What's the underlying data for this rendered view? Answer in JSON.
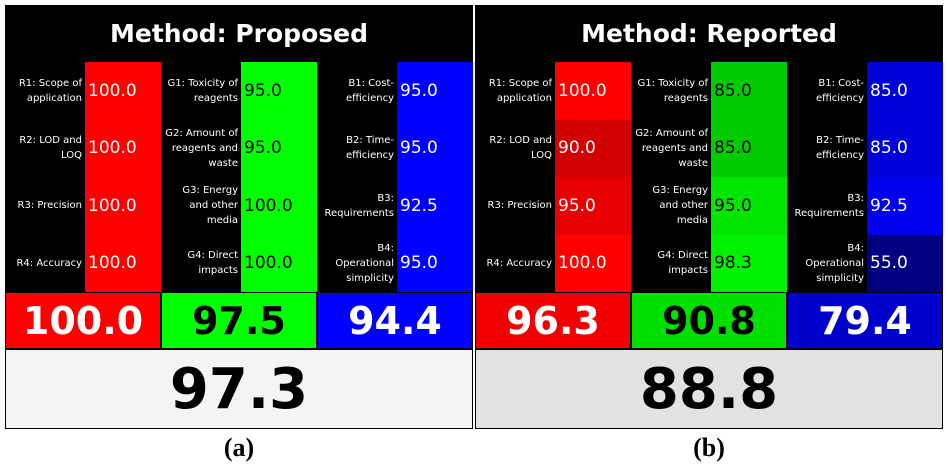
{
  "panels": [
    {
      "title": "Method: Proposed",
      "caption": "(a)",
      "overall": "97.3",
      "overall_color": "#f4f4f4",
      "groups": [
        {
          "text_color": "#ffffff",
          "score": "100.0",
          "score_color": "#ff0000",
          "rows": [
            {
              "label": "R1: Scope of application",
              "value": "100.0",
              "color": "#ff0000"
            },
            {
              "label": "R2: LOD and LOQ",
              "value": "100.0",
              "color": "#ff0000"
            },
            {
              "label": "R3: Precision",
              "value": "100.0",
              "color": "#ff0000"
            },
            {
              "label": "R4: Accuracy",
              "value": "100.0",
              "color": "#ff0000"
            }
          ]
        },
        {
          "text_color": "#000000",
          "score": "97.5",
          "score_color": "#00ff00",
          "rows": [
            {
              "label": "G1: Toxicity of reagents",
              "value": "95.0",
              "color": "#00ff00"
            },
            {
              "label": "G2: Amount of reagents and waste",
              "value": "95.0",
              "color": "#00ff00"
            },
            {
              "label": "G3: Energy and other media",
              "value": "100.0",
              "color": "#00ff00"
            },
            {
              "label": "G4: Direct impacts",
              "value": "100.0",
              "color": "#00ff00"
            }
          ]
        },
        {
          "text_color": "#ffffff",
          "score": "94.4",
          "score_color": "#0000ff",
          "rows": [
            {
              "label": "B1: Cost-efficiency",
              "value": "95.0",
              "color": "#0000ff"
            },
            {
              "label": "B2: Time-efficiency",
              "value": "95.0",
              "color": "#0000ff"
            },
            {
              "label": "B3: Requirements",
              "value": "92.5",
              "color": "#0000ff"
            },
            {
              "label": "B4: Operational simplicity",
              "value": "95.0",
              "color": "#0000ff"
            }
          ]
        }
      ]
    },
    {
      "title": "Method: Reported",
      "caption": "(b)",
      "overall": "88.8",
      "overall_color": "#e2e2e2",
      "groups": [
        {
          "text_color": "#ffffff",
          "score": "96.3",
          "score_color": "#f20000",
          "rows": [
            {
              "label": "R1: Scope of application",
              "value": "100.0",
              "color": "#ff0000"
            },
            {
              "label": "R2: LOD and LOQ",
              "value": "90.0",
              "color": "#d20000"
            },
            {
              "label": "R3: Precision",
              "value": "95.0",
              "color": "#e60000"
            },
            {
              "label": "R4: Accuracy",
              "value": "100.0",
              "color": "#ff0000"
            }
          ]
        },
        {
          "text_color": "#000000",
          "score": "90.8",
          "score_color": "#00e000",
          "rows": [
            {
              "label": "G1: Toxicity of reagents",
              "value": "85.0",
              "color": "#00cc00"
            },
            {
              "label": "G2: Amount of reagents and waste",
              "value": "85.0",
              "color": "#00cc00"
            },
            {
              "label": "G3: Energy and other media",
              "value": "95.0",
              "color": "#00e600"
            },
            {
              "label": "G4: Direct impacts",
              "value": "98.3",
              "color": "#00f200"
            }
          ]
        },
        {
          "text_color": "#ffffff",
          "score": "79.4",
          "score_color": "#0000cc",
          "rows": [
            {
              "label": "B1: Cost-efficiency",
              "value": "85.0",
              "color": "#0000d9"
            },
            {
              "label": "B2: Time-efficiency",
              "value": "85.0",
              "color": "#0000d9"
            },
            {
              "label": "B3: Requirements",
              "value": "92.5",
              "color": "#0000ec"
            },
            {
              "label": "B4: Operational simplicity",
              "value": "55.0",
              "color": "#000080"
            }
          ]
        }
      ]
    }
  ]
}
